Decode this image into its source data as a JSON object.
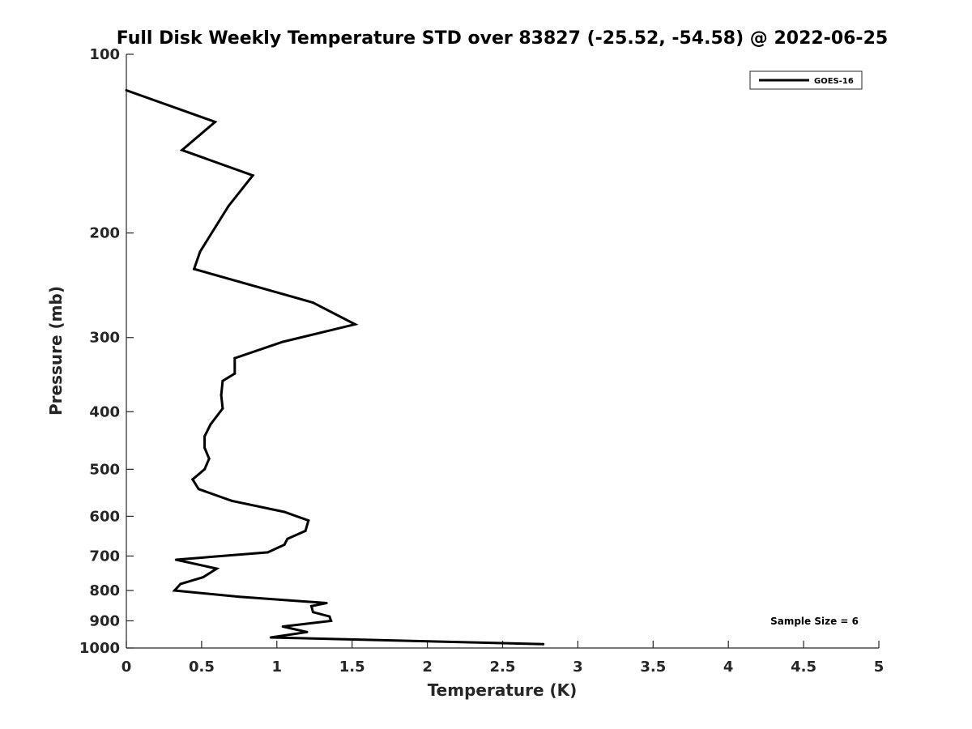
{
  "chart_data": {
    "type": "line",
    "title": "Full Disk Weekly Temperature STD over 83827 (-25.52, -54.58) @ 2022-06-25",
    "xlabel": "Temperature (K)",
    "ylabel": "Pressure (mb)",
    "xlim": [
      0,
      5
    ],
    "ylim": [
      100,
      1000
    ],
    "yscale": "log",
    "y_reversed": true,
    "x_ticks": [
      "0",
      "0.5",
      "1",
      "1.5",
      "2",
      "2.5",
      "3",
      "3.5",
      "4",
      "4.5",
      "5"
    ],
    "y_ticks": [
      "100",
      "200",
      "300",
      "400",
      "500",
      "600",
      "700",
      "800",
      "900",
      "1000"
    ],
    "grid": false,
    "legend_position": "top-right",
    "series": [
      {
        "name": "GOES-16",
        "color": "#000000",
        "x": [
          0.0,
          0.59,
          0.37,
          0.84,
          0.68,
          0.49,
          0.45,
          1.24,
          1.52,
          1.04,
          0.72,
          0.72,
          0.64,
          0.63,
          0.64,
          0.56,
          0.52,
          0.52,
          0.55,
          0.52,
          0.44,
          0.48,
          0.7,
          1.05,
          1.21,
          1.19,
          1.07,
          1.05,
          0.94,
          0.33,
          0.6,
          0.51,
          0.36,
          0.32,
          0.75,
          1.33,
          1.23,
          1.24,
          1.35,
          1.36,
          1.04,
          1.2,
          0.96,
          2.77
        ],
        "y": [
          115,
          130,
          145,
          160,
          180,
          215,
          230,
          262,
          285,
          305,
          325,
          345,
          355,
          375,
          395,
          420,
          440,
          460,
          480,
          500,
          520,
          540,
          565,
          590,
          610,
          635,
          655,
          670,
          690,
          710,
          735,
          760,
          780,
          800,
          820,
          840,
          850,
          870,
          885,
          900,
          920,
          940,
          960,
          985
        ]
      }
    ],
    "annotations": [
      {
        "text": "Sample Size = 6",
        "position": "bottom-right"
      }
    ]
  }
}
